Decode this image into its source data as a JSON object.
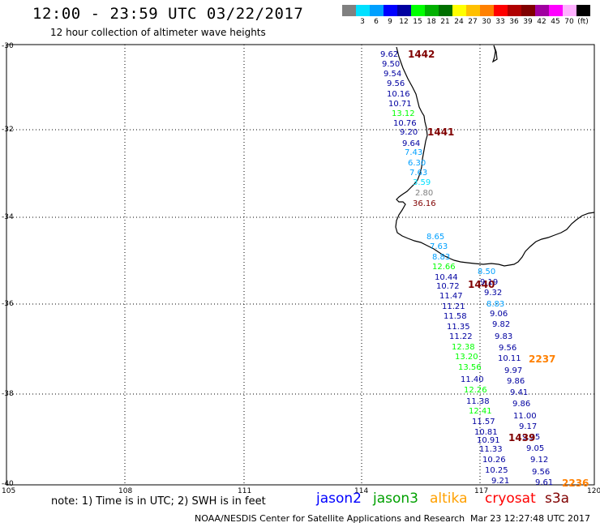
{
  "header": {
    "title": "12:00 - 23:59 UTC 03/22/2017",
    "subtitle": "12 hour collection of altimeter wave heights"
  },
  "color_scale": {
    "bins": [
      {
        "color": "#808080",
        "label": ""
      },
      {
        "color": "#00e0ff",
        "label": "3"
      },
      {
        "color": "#00a0ff",
        "label": "6"
      },
      {
        "color": "#0000ff",
        "label": "9"
      },
      {
        "color": "#0000a0",
        "label": "12"
      },
      {
        "color": "#00ff00",
        "label": "15"
      },
      {
        "color": "#00b000",
        "label": "18"
      },
      {
        "color": "#007000",
        "label": "21"
      },
      {
        "color": "#ffff00",
        "label": "24"
      },
      {
        "color": "#ffc000",
        "label": "27"
      },
      {
        "color": "#ff8000",
        "label": "30"
      },
      {
        "color": "#ff0000",
        "label": "33"
      },
      {
        "color": "#b00000",
        "label": "36"
      },
      {
        "color": "#800000",
        "label": "39"
      },
      {
        "color": "#a000a0",
        "label": "42"
      },
      {
        "color": "#ff00ff",
        "label": "45"
      },
      {
        "color": "#ffb0ff",
        "label": "70"
      },
      {
        "color": "#000000",
        "label": "(ft)"
      }
    ]
  },
  "axes": {
    "lat_labels": [
      "-30",
      "-32",
      "-34",
      "-36",
      "-38",
      "-40"
    ],
    "lon_labels": [
      "105",
      "108",
      "111",
      "114",
      "117",
      "120"
    ]
  },
  "tracks": [
    {
      "id": "1442",
      "color": "#800000",
      "points": [
        {
          "v": "9.62",
          "c": "#0000a0"
        },
        {
          "v": "9.50",
          "c": "#0000a0"
        },
        {
          "v": "9.54",
          "c": "#0000a0"
        },
        {
          "v": "9.56",
          "c": "#0000a0"
        },
        {
          "v": "10.16",
          "c": "#0000a0"
        },
        {
          "v": "10.71",
          "c": "#0000a0"
        },
        {
          "v": "13.12",
          "c": "#00ff00"
        },
        {
          "v": "10.76",
          "c": "#0000a0"
        },
        {
          "v": "9.20",
          "c": "#0000a0"
        },
        {
          "v": "9.64",
          "c": "#0000a0"
        },
        {
          "v": "7.43",
          "c": "#00a0ff"
        },
        {
          "v": "6.30",
          "c": "#00a0ff"
        },
        {
          "v": "7.63",
          "c": "#00a0ff"
        },
        {
          "v": "3.59",
          "c": "#00e0ff"
        },
        {
          "v": "2.80",
          "c": "#808080"
        },
        {
          "v": "36.16",
          "c": "#800000"
        }
      ]
    },
    {
      "id": "1441",
      "color": "#800000",
      "points": []
    },
    {
      "id": "1440",
      "color": "#800000",
      "points": [
        {
          "v": "8.65",
          "c": "#00a0ff"
        },
        {
          "v": "7.63",
          "c": "#00a0ff"
        },
        {
          "v": "8.83",
          "c": "#00a0ff"
        },
        {
          "v": "12.66",
          "c": "#00ff00"
        },
        {
          "v": "10.44",
          "c": "#0000a0"
        },
        {
          "v": "10.72",
          "c": "#0000a0"
        },
        {
          "v": "11.47",
          "c": "#0000a0"
        },
        {
          "v": "11.21",
          "c": "#0000a0"
        },
        {
          "v": "11.58",
          "c": "#0000a0"
        },
        {
          "v": "11.35",
          "c": "#0000a0"
        },
        {
          "v": "11.22",
          "c": "#0000a0"
        },
        {
          "v": "12.38",
          "c": "#00ff00"
        },
        {
          "v": "13.20",
          "c": "#00ff00"
        },
        {
          "v": "13.56",
          "c": "#00ff00"
        },
        {
          "v": "11.40",
          "c": "#0000a0"
        },
        {
          "v": "12.26",
          "c": "#00ff00"
        },
        {
          "v": "11.38",
          "c": "#0000a0"
        },
        {
          "v": "12.41",
          "c": "#00ff00"
        },
        {
          "v": "11.57",
          "c": "#0000a0"
        },
        {
          "v": "10.81",
          "c": "#0000a0"
        },
        {
          "v": "10.91",
          "c": "#0000a0"
        },
        {
          "v": "11.33",
          "c": "#0000a0"
        },
        {
          "v": "10.26",
          "c": "#0000a0"
        },
        {
          "v": "10.25",
          "c": "#0000a0"
        },
        {
          "v": "9.21",
          "c": "#0000a0"
        }
      ]
    },
    {
      "id": "1439",
      "color": "#800000",
      "points": [
        {
          "v": "8.50",
          "c": "#00a0ff"
        },
        {
          "v": "9.19",
          "c": "#0000a0"
        },
        {
          "v": "9.32",
          "c": "#0000a0"
        },
        {
          "v": "8.83",
          "c": "#00a0ff"
        },
        {
          "v": "9.06",
          "c": "#0000a0"
        },
        {
          "v": "9.82",
          "c": "#0000a0"
        },
        {
          "v": "9.83",
          "c": "#0000a0"
        },
        {
          "v": "9.56",
          "c": "#0000a0"
        },
        {
          "v": "10.11",
          "c": "#0000a0"
        },
        {
          "v": "9.97",
          "c": "#0000a0"
        },
        {
          "v": "9.86",
          "c": "#0000a0"
        },
        {
          "v": "9.41",
          "c": "#0000a0"
        },
        {
          "v": "9.86",
          "c": "#0000a0"
        },
        {
          "v": "11.00",
          "c": "#0000a0"
        },
        {
          "v": "9.17",
          "c": "#0000a0"
        },
        {
          "v": "9.35",
          "c": "#0000a0"
        },
        {
          "v": "9.05",
          "c": "#0000a0"
        },
        {
          "v": "9.12",
          "c": "#0000a0"
        },
        {
          "v": "9.56",
          "c": "#0000a0"
        },
        {
          "v": "9.61",
          "c": "#0000a0"
        }
      ]
    },
    {
      "id": "2237",
      "color": "#ff8000",
      "points": []
    },
    {
      "id": "2236",
      "color": "#ff8000",
      "points": []
    }
  ],
  "footer": {
    "note": "note:  1) Time is in UTC;  2) SWH is in feet",
    "satellites": [
      {
        "name": "jason2",
        "color": "#0000ff"
      },
      {
        "name": "jason3",
        "color": "#00a000"
      },
      {
        "name": "altika",
        "color": "#ffa000"
      },
      {
        "name": "cryosat",
        "color": "#ff0000"
      },
      {
        "name": "s3a",
        "color": "#800000"
      }
    ],
    "credit": "NOAA/NESDIS Center for Satellite Applications and Research",
    "timestamp": "Mar 23 12:27:48 UTC 2017"
  }
}
